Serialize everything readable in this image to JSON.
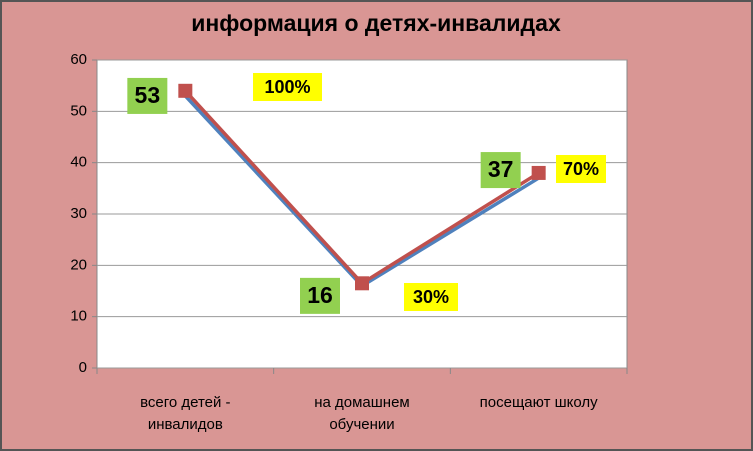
{
  "chart_data": {
    "type": "line",
    "title": "информация о детях-инвалидах",
    "categories": [
      "всего детей - инвалидов",
      "на домашнем обучении",
      "посещают школу"
    ],
    "series": [
      {
        "color": "#4f81bd",
        "values": [
          53,
          16,
          37
        ],
        "label_color": "#92d050"
      },
      {
        "color": "#c0504d",
        "values": [
          54,
          16.5,
          38
        ],
        "marker": "square"
      }
    ],
    "annotations": [
      "100%",
      "30%",
      "70%"
    ],
    "annotation_color": "#ffff00",
    "ylim": [
      0,
      60
    ],
    "yticks": [
      0,
      10,
      20,
      30,
      40,
      50,
      60
    ],
    "grid": true
  }
}
